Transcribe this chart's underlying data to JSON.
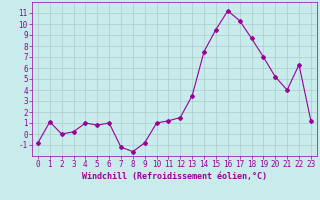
{
  "x": [
    0,
    1,
    2,
    3,
    4,
    5,
    6,
    7,
    8,
    9,
    10,
    11,
    12,
    13,
    14,
    15,
    16,
    17,
    18,
    19,
    20,
    21,
    22,
    23
  ],
  "y": [
    -0.8,
    1.1,
    0.0,
    0.2,
    1.0,
    0.8,
    1.0,
    -1.2,
    -1.6,
    -0.8,
    1.0,
    1.2,
    1.5,
    3.5,
    7.5,
    9.5,
    11.2,
    10.3,
    8.7,
    7.0,
    5.2,
    4.0,
    6.3,
    1.2
  ],
  "line_color": "#990099",
  "marker": "D",
  "marker_size": 2,
  "bg_color": "#c8ebeb",
  "grid_color": "#aacccc",
  "xlabel": "Windchill (Refroidissement éolien,°C)",
  "xlabel_fontsize": 6,
  "tick_fontsize": 5.5,
  "ylim": [
    -2,
    12
  ],
  "yticks": [
    -1,
    0,
    1,
    2,
    3,
    4,
    5,
    6,
    7,
    8,
    9,
    10,
    11
  ],
  "xlim": [
    -0.5,
    23.5
  ],
  "xticks": [
    0,
    1,
    2,
    3,
    4,
    5,
    6,
    7,
    8,
    9,
    10,
    11,
    12,
    13,
    14,
    15,
    16,
    17,
    18,
    19,
    20,
    21,
    22,
    23
  ]
}
